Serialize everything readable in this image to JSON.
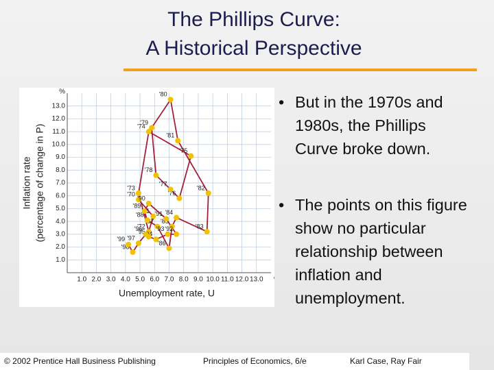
{
  "slide": {
    "title": [
      "The Phillips Curve:",
      "A Historical Perspective"
    ],
    "bullets": [
      "But in the 1970s and 1980s, the Phillips Curve broke down.",
      "The points on this figure show no particular relationship between inflation and unemployment."
    ],
    "footer": [
      "© 2002 Prentice Hall Business Publishing",
      "Principles of Economics, 6/e",
      "Karl Case, Ray Fair"
    ]
  },
  "chart_data": {
    "type": "scatter",
    "x_label": "Unemployment rate, U",
    "y_label": [
      "Inflation rate",
      "(percentage of change in P)"
    ],
    "x_unit": "%",
    "y_unit": "%",
    "point_labels": [
      "'70",
      "'71",
      "'72",
      "'73",
      "'74",
      "'75",
      "'76",
      "'77",
      "'78",
      "'79",
      "'80",
      "'81",
      "'82",
      "'83",
      "'84",
      "'85",
      "'86",
      "'87",
      "'88",
      "'89",
      "'90",
      "'91",
      "'92",
      "'93",
      "'94",
      "'95",
      "'96",
      "'97",
      "'98",
      "'99"
    ],
    "x": [
      4.9,
      5.9,
      5.6,
      4.9,
      5.6,
      8.5,
      7.7,
      7.1,
      6.1,
      5.8,
      7.1,
      7.6,
      9.7,
      9.6,
      7.5,
      7.2,
      7.0,
      6.2,
      5.5,
      5.3,
      5.6,
      6.8,
      7.5,
      6.9,
      6.1,
      5.6,
      5.4,
      4.9,
      4.5,
      4.2
    ],
    "values": [
      5.7,
      4.4,
      3.2,
      6.2,
      11.0,
      9.1,
      5.8,
      6.5,
      7.6,
      11.3,
      13.5,
      10.3,
      6.2,
      3.2,
      4.3,
      3.6,
      1.9,
      3.6,
      4.1,
      4.8,
      5.4,
      4.2,
      3.0,
      3.0,
      2.6,
      2.8,
      3.0,
      2.3,
      1.6,
      2.2
    ],
    "point_color": "#f2c200",
    "line_color": "#a3203a",
    "xlim": [
      0,
      14
    ],
    "ylim": [
      0,
      14
    ],
    "xticks": [
      {
        "value": 1,
        "label": "1.0"
      },
      {
        "value": 2,
        "label": "2.0"
      },
      {
        "value": 3,
        "label": "3.0"
      },
      {
        "value": 4,
        "label": "4.0"
      },
      {
        "value": 5,
        "label": "5.0"
      },
      {
        "value": 6,
        "label": "6.0"
      },
      {
        "value": 7,
        "label": "7.0"
      },
      {
        "value": 8,
        "label": "8.0"
      },
      {
        "value": 9,
        "label": "9.0"
      },
      {
        "value": 10,
        "label": "10.0"
      },
      {
        "value": 11,
        "label": "11.0"
      },
      {
        "value": 12,
        "label": "12.0"
      },
      {
        "value": 13,
        "label": "13.0"
      }
    ],
    "yticks": [
      {
        "value": 1,
        "label": "1.0"
      },
      {
        "value": 2,
        "label": "2.0"
      },
      {
        "value": 3,
        "label": "3.0"
      },
      {
        "value": 4,
        "label": "4.0"
      },
      {
        "value": 5,
        "label": "5.0"
      },
      {
        "value": 6,
        "label": "6.0"
      },
      {
        "value": 7,
        "label": "7.0"
      },
      {
        "value": 8,
        "label": "8.0"
      },
      {
        "value": 9,
        "label": "9.0"
      },
      {
        "value": 10,
        "label": "10.0"
      },
      {
        "value": 11,
        "label": "11.0"
      },
      {
        "value": 12,
        "label": "12.0"
      },
      {
        "value": 13,
        "label": "13.0"
      }
    ],
    "grid": true
  }
}
